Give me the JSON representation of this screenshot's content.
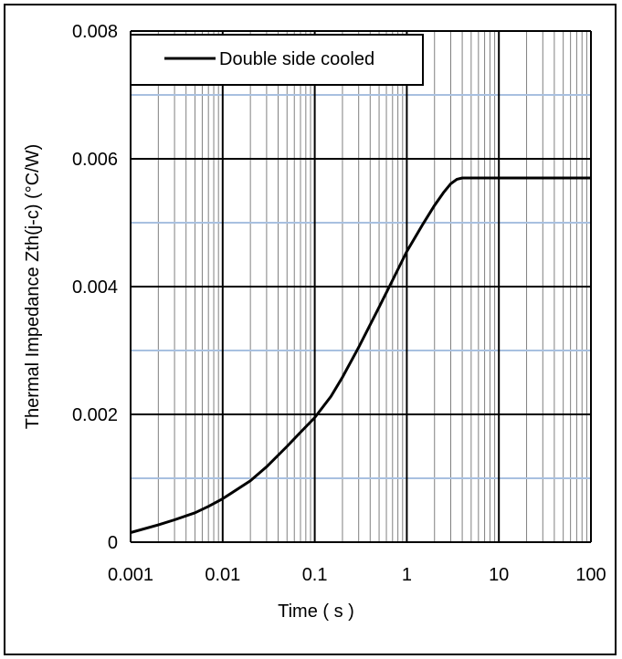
{
  "chart_data": {
    "type": "line",
    "x_scale": "log",
    "xlabel": "Time ( s )",
    "ylabel": "Thermal Impedance  Zth(j-c)  (°C/W)",
    "xlim": [
      0.001,
      100
    ],
    "ylim": [
      0,
      0.008
    ],
    "x_tick_labels": [
      "0.001",
      "0.01",
      "0.1",
      "1",
      "10",
      "100"
    ],
    "x_ticks": [
      0.001,
      0.01,
      0.1,
      1,
      10,
      100
    ],
    "y_tick_labels": [
      "0",
      "0.002",
      "0.004",
      "0.006",
      "0.008"
    ],
    "y_ticks": [
      0,
      0.002,
      0.004,
      0.006,
      0.008
    ],
    "y_minor_gridlines": [
      0.001,
      0.003,
      0.005,
      0.007
    ],
    "grid": true,
    "legend": {
      "placement": "top-left",
      "entries": [
        "Double side cooled"
      ]
    },
    "series": [
      {
        "name": "Double side cooled",
        "color": "#000000",
        "x": [
          0.001,
          0.002,
          0.003,
          0.005,
          0.007,
          0.01,
          0.02,
          0.03,
          0.05,
          0.07,
          0.1,
          0.15,
          0.2,
          0.3,
          0.5,
          0.7,
          1,
          1.5,
          2,
          2.5,
          3,
          3.5,
          4,
          5,
          10,
          20,
          50,
          100
        ],
        "y": [
          0.00015,
          0.00027,
          0.00035,
          0.00046,
          0.00056,
          0.00068,
          0.00096,
          0.00118,
          0.0015,
          0.00172,
          0.00195,
          0.00228,
          0.00258,
          0.00305,
          0.00368,
          0.0041,
          0.00455,
          0.00498,
          0.00527,
          0.00547,
          0.00561,
          0.00568,
          0.0057,
          0.0057,
          0.0057,
          0.0057,
          0.0057,
          0.0057
        ]
      }
    ],
    "colors": {
      "major_grid": "#000000",
      "minor_x_grid": "#808080",
      "minor_y_grid": "#a8c0e0",
      "line": "#000000"
    }
  }
}
